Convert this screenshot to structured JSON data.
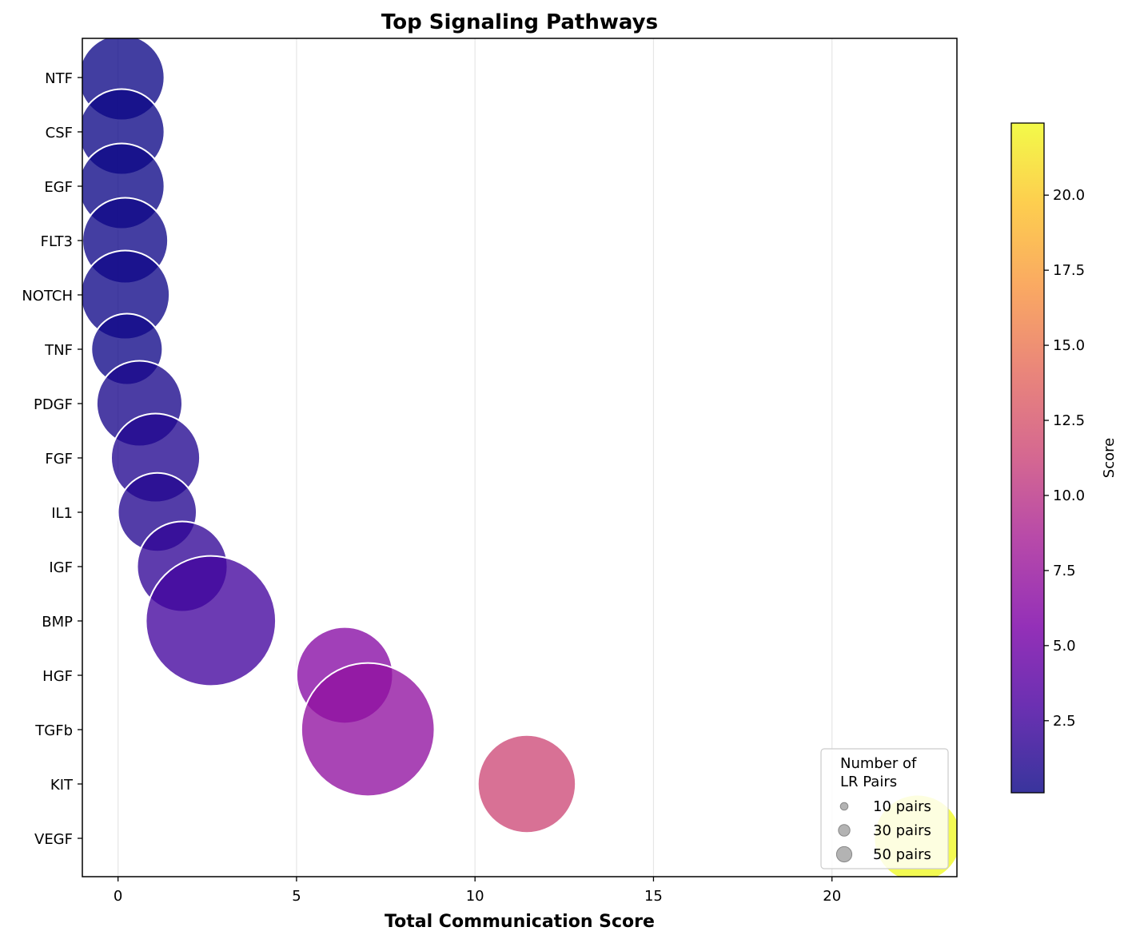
{
  "chart_data": {
    "type": "scatter",
    "title": "Top Signaling Pathways",
    "xlabel": "Total Communication Score",
    "ylabel": "",
    "xlim": [
      -1.0,
      23.5
    ],
    "x_ticks": [
      0,
      5,
      10,
      15,
      20
    ],
    "grid": "vertical",
    "categories": [
      "NTF",
      "CSF",
      "EGF",
      "FLT3",
      "NOTCH",
      "TNF",
      "PDGF",
      "FGF",
      "IL1",
      "IGF",
      "BMP",
      "HGF",
      "TGFb",
      "KIT",
      "VEGF"
    ],
    "points": [
      {
        "category": "NTF",
        "x": 0.1,
        "pairs": 26,
        "score": 0.1
      },
      {
        "category": "CSF",
        "x": 0.1,
        "pairs": 26,
        "score": 0.1
      },
      {
        "category": "EGF",
        "x": 0.1,
        "pairs": 26,
        "score": 0.1
      },
      {
        "category": "FLT3",
        "x": 0.2,
        "pairs": 26,
        "score": 0.2
      },
      {
        "category": "NOTCH",
        "x": 0.2,
        "pairs": 28,
        "score": 0.2
      },
      {
        "category": "TNF",
        "x": 0.25,
        "pairs": 18,
        "score": 0.25
      },
      {
        "category": "PDGF",
        "x": 0.6,
        "pairs": 26,
        "score": 0.6
      },
      {
        "category": "FGF",
        "x": 1.05,
        "pairs": 28,
        "score": 1.05
      },
      {
        "category": "IL1",
        "x": 1.1,
        "pairs": 22,
        "score": 1.1
      },
      {
        "category": "IGF",
        "x": 1.8,
        "pairs": 29,
        "score": 1.8
      },
      {
        "category": "BMP",
        "x": 2.6,
        "pairs": 60,
        "score": 2.6
      },
      {
        "category": "HGF",
        "x": 6.35,
        "pairs": 33,
        "score": 6.35
      },
      {
        "category": "TGFb",
        "x": 7.0,
        "pairs": 63,
        "score": 7.0
      },
      {
        "category": "KIT",
        "x": 11.45,
        "pairs": 34,
        "score": 11.45
      },
      {
        "category": "VEGF",
        "x": 22.4,
        "pairs": 27,
        "score": 22.4
      }
    ],
    "colorbar": {
      "label": "Score",
      "colormap": "plasma",
      "range": [
        0.1,
        22.4
      ],
      "ticks": [
        2.5,
        5.0,
        7.5,
        10.0,
        12.5,
        15.0,
        17.5,
        20.0
      ],
      "tick_labels": [
        "2.5",
        "5.0",
        "7.5",
        "10.0",
        "12.5",
        "15.0",
        "17.5",
        "20.0"
      ]
    },
    "size_legend": {
      "title_lines": [
        "Number of",
        "LR Pairs"
      ],
      "placement": "lower-right",
      "entries": [
        {
          "label": "10 pairs",
          "pairs": 10
        },
        {
          "label": "30 pairs",
          "pairs": 30
        },
        {
          "label": "50 pairs",
          "pairs": 50
        }
      ]
    },
    "colors": {
      "marker_edge": "#ffffff",
      "grid": "#e6e6e6",
      "legend_marker": "#999999"
    }
  }
}
